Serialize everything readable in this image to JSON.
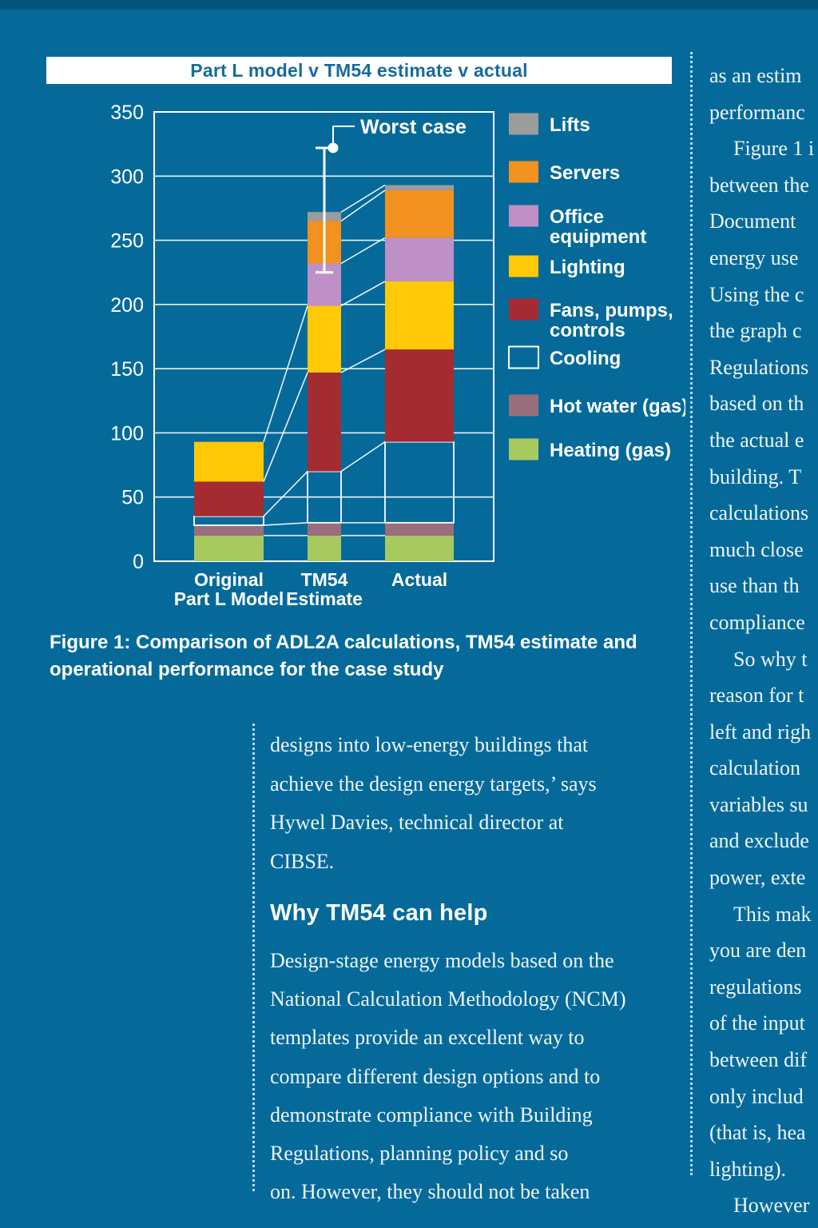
{
  "page": {
    "background_color": "#056A9A",
    "top_strip_color": "#04547E",
    "accent_white": "#FFFFFF"
  },
  "figure": {
    "title": "Part L model v TM54 estimate v actual",
    "title_color": "#176B9C",
    "caption_line1": "Figure 1: Comparison of ADL2A calculations, TM54 estimate and",
    "caption_line2": "operational performance for the case study"
  },
  "chart_data": {
    "type": "bar",
    "stacked": true,
    "title": "Part L model v TM54 estimate v actual",
    "categories": [
      [
        "Original",
        "Part L Model"
      ],
      [
        "TM54",
        "Estimate"
      ],
      [
        "Actual"
      ]
    ],
    "series": [
      {
        "name": "Heating (gas)",
        "color": "#A7C95F",
        "values": [
          20,
          20,
          20
        ]
      },
      {
        "name": "Hot water (gas)",
        "color": "#9A6E7C",
        "values": [
          8,
          10,
          10
        ]
      },
      {
        "name": "Cooling",
        "color": "outline",
        "values": [
          7,
          40,
          63
        ]
      },
      {
        "name": "Fans, pumps, controls",
        "color": "#A52B32",
        "values": [
          27,
          77,
          72
        ]
      },
      {
        "name": "Lighting",
        "color": "#FFC907",
        "values": [
          31,
          52,
          53
        ]
      },
      {
        "name": "Office equipment",
        "color": "#BF90C5",
        "values": [
          0,
          33,
          34
        ]
      },
      {
        "name": "Servers",
        "color": "#F3911E",
        "values": [
          0,
          33,
          37
        ]
      },
      {
        "name": "Lifts",
        "color": "#9C9C9C",
        "values": [
          0,
          7,
          4
        ]
      }
    ],
    "totals": [
      93,
      272,
      293
    ],
    "ylim": [
      0,
      350
    ],
    "yticks": [
      0,
      50,
      100,
      150,
      200,
      250,
      300,
      350
    ],
    "grid": true,
    "legend_position": "right",
    "annotation": {
      "label": "Worst case",
      "category": "TM54 Estimate",
      "whisker_low": 225,
      "whisker_high": 322
    }
  },
  "legend": [
    {
      "lines": [
        "Lifts"
      ],
      "color": "#9C9C9C"
    },
    {
      "lines": [
        "Servers"
      ],
      "color": "#F3911E"
    },
    {
      "lines": [
        "Office",
        "equipment"
      ],
      "color": "#BF90C5"
    },
    {
      "lines": [
        "Lighting"
      ],
      "color": "#FFC907"
    },
    {
      "lines": [
        "Fans, pumps,",
        "controls"
      ],
      "color": "#A52B32"
    },
    {
      "lines": [
        "Cooling"
      ],
      "color": "outline"
    },
    {
      "lines": [
        "Hot water (gas)"
      ],
      "color": "#9A6E7C"
    },
    {
      "lines": [
        "Heating (gas)"
      ],
      "color": "#A7C95F"
    }
  ],
  "middle_column": {
    "para1_lines": [
      "designs into low-energy buildings that",
      "achieve the design energy targets,’ says",
      "Hywel Davies, technical director at",
      "CIBSE."
    ],
    "heading": "Why TM54 can help",
    "para2_lines": [
      "Design-stage energy models based on the",
      "National Calculation Methodology (NCM)",
      "templates provide an excellent way to",
      "compare different design options and to",
      "demonstrate compliance with Building",
      "Regulations, planning policy and so",
      "on. However, they should not be taken"
    ]
  },
  "right_column": {
    "lines": [
      "as an estim",
      "performanc",
      "Figure 1 i",
      "between the",
      "Document",
      "energy use",
      "Using the c",
      "the graph c",
      "Regulations",
      "based on th",
      "the actual e",
      "building. T",
      "calculations",
      "much close",
      "use than th",
      "compliance",
      "So why t",
      "reason for t",
      "left and righ",
      "calculation",
      "variables su",
      "and exclude",
      "power, exte",
      "This mak",
      "you are den",
      "regulations",
      "of the input",
      "between dif",
      "only includ",
      "(that is, hea",
      "lighting).",
      "However"
    ],
    "indented_line_indexes": [
      2,
      16,
      23,
      31
    ]
  }
}
